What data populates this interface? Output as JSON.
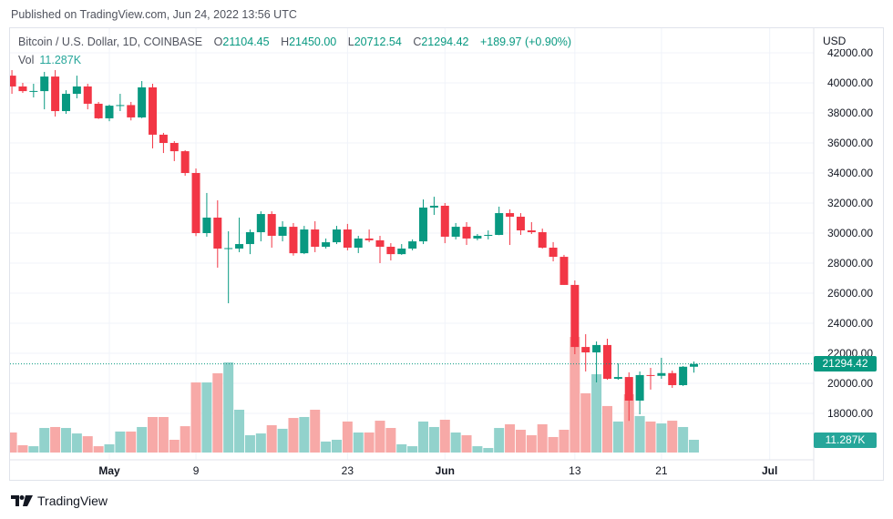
{
  "published": "Published on TradingView.com, Jun 24, 2022 13:56 UTC",
  "legend": {
    "symbol": "Bitcoin / U.S. Dollar, 1D, COINBASE",
    "open_label": "O",
    "open": "21104.45",
    "high_label": "H",
    "high": "21450.00",
    "low_label": "L",
    "low": "20712.54",
    "close_label": "C",
    "close": "21294.42",
    "change": "+189.97 (+0.90%)",
    "vol_label": "Vol",
    "vol": "11.287K"
  },
  "currency": "USD",
  "price_badge": "21294.42",
  "vol_badge": "11.287K",
  "footer_brand": "TradingView",
  "colors": {
    "up": "#089981",
    "down": "#f23645",
    "vol_up": "#92d2cc",
    "vol_down": "#f7a9a7",
    "grid": "#f0f3fa"
  },
  "chart_data": {
    "type": "candlestick",
    "title": "Bitcoin / U.S. Dollar, 1D, COINBASE",
    "ylabel": "USD",
    "ylim": [
      16600,
      42300
    ],
    "grid": true,
    "y_ticks": [
      "42000.00",
      "40000.00",
      "38000.00",
      "36000.00",
      "34000.00",
      "32000.00",
      "30000.00",
      "28000.00",
      "26000.00",
      "24000.00",
      "22000.00",
      "20000.00",
      "18000.00"
    ],
    "x_ticks": [
      {
        "label": "May",
        "date": "2022-05-01",
        "bold": true
      },
      {
        "label": "9",
        "date": "2022-05-09",
        "bold": false
      },
      {
        "label": "23",
        "date": "2022-05-23",
        "bold": false
      },
      {
        "label": "Jun",
        "date": "2022-06-01",
        "bold": true
      },
      {
        "label": "13",
        "date": "2022-06-13",
        "bold": false
      },
      {
        "label": "21",
        "date": "2022-06-21",
        "bold": false
      },
      {
        "label": "Jul",
        "date": "2022-07-01",
        "bold": true
      }
    ],
    "last_price": 21294.42,
    "columns": [
      "date",
      "open",
      "high",
      "low",
      "close",
      "volume_K"
    ],
    "candles": [
      [
        "2022-04-22",
        40480,
        40850,
        39270,
        39760,
        16.6
      ],
      [
        "2022-04-23",
        39760,
        40000,
        39330,
        39450,
        7.3
      ],
      [
        "2022-04-24",
        39450,
        39940,
        39030,
        39460,
        6.6
      ],
      [
        "2022-04-25",
        39450,
        40730,
        38240,
        40420,
        19.9
      ],
      [
        "2022-04-26",
        40420,
        40850,
        37760,
        38120,
        20.6
      ],
      [
        "2022-04-27",
        38120,
        39510,
        37940,
        39270,
        19.9
      ],
      [
        "2022-04-28",
        39270,
        40480,
        38970,
        39760,
        15.9
      ],
      [
        "2022-04-29",
        39760,
        39940,
        38240,
        38610,
        13.9
      ],
      [
        "2022-04-30",
        38610,
        38730,
        37600,
        37640,
        6.6
      ],
      [
        "2022-05-01",
        37640,
        38550,
        37450,
        38480,
        8.0
      ],
      [
        "2022-05-02",
        38480,
        39270,
        38120,
        38520,
        17.3
      ],
      [
        "2022-05-03",
        38520,
        38730,
        37500,
        37700,
        17.3
      ],
      [
        "2022-05-04",
        37700,
        40120,
        37650,
        39700,
        20.6
      ],
      [
        "2022-05-05",
        39700,
        39940,
        35640,
        36550,
        27.9
      ],
      [
        "2022-05-06",
        36550,
        36670,
        35330,
        36000,
        27.9
      ],
      [
        "2022-05-07",
        36000,
        36120,
        34790,
        35450,
        11.3
      ],
      [
        "2022-05-08",
        35450,
        35520,
        33820,
        34000,
        21.2
      ],
      [
        "2022-05-09",
        34000,
        34300,
        29800,
        30000,
        53.1
      ],
      [
        "2022-05-10",
        30000,
        32670,
        29760,
        31030,
        53.1
      ],
      [
        "2022-05-11",
        31030,
        32180,
        27700,
        28970,
        59.8
      ],
      [
        "2022-05-12",
        28970,
        30120,
        25330,
        29000,
        67.7
      ],
      [
        "2022-05-13",
        28970,
        31030,
        28730,
        29270,
        33.2
      ],
      [
        "2022-05-14",
        29270,
        30240,
        28600,
        30060,
        14.6
      ],
      [
        "2022-05-15",
        30060,
        31450,
        29450,
        31270,
        15.9
      ],
      [
        "2022-05-16",
        31270,
        31450,
        29030,
        29820,
        21.9
      ],
      [
        "2022-05-17",
        29820,
        30790,
        29450,
        30420,
        19.3
      ],
      [
        "2022-05-18",
        30420,
        30670,
        28500,
        28660,
        27.2
      ],
      [
        "2022-05-19",
        28660,
        30480,
        28600,
        30240,
        27.9
      ],
      [
        "2022-05-20",
        30240,
        30790,
        28730,
        29090,
        33.2
      ],
      [
        "2022-05-21",
        29090,
        29640,
        28970,
        29390,
        10.0
      ],
      [
        "2022-05-22",
        29390,
        30480,
        29270,
        30240,
        11.3
      ],
      [
        "2022-05-23",
        30240,
        30610,
        28850,
        29030,
        24.6
      ],
      [
        "2022-05-24",
        29030,
        29820,
        28670,
        29640,
        16.6
      ],
      [
        "2022-05-25",
        29640,
        30240,
        29400,
        29520,
        16.6
      ],
      [
        "2022-05-26",
        29520,
        29820,
        28000,
        29090,
        25.2
      ],
      [
        "2022-05-27",
        29090,
        29330,
        28180,
        28600,
        19.9
      ],
      [
        "2022-05-28",
        28600,
        29270,
        28550,
        28970,
        8.0
      ],
      [
        "2022-05-29",
        28970,
        29580,
        28850,
        29450,
        6.6
      ],
      [
        "2022-05-30",
        29450,
        32240,
        29270,
        31700,
        24.6
      ],
      [
        "2022-05-31",
        31700,
        32420,
        31210,
        31820,
        20.6
      ],
      [
        "2022-06-01",
        31820,
        32000,
        29330,
        29760,
        25.9
      ],
      [
        "2022-06-02",
        29760,
        30670,
        29580,
        30420,
        16.6
      ],
      [
        "2022-06-03",
        30420,
        30730,
        29210,
        29640,
        14.6
      ],
      [
        "2022-06-04",
        29640,
        29940,
        29520,
        29820,
        6.6
      ],
      [
        "2022-06-05",
        29820,
        30180,
        29580,
        29880,
        5.3
      ],
      [
        "2022-06-06",
        29880,
        31760,
        29860,
        31330,
        19.9
      ],
      [
        "2022-06-07",
        31330,
        31580,
        29210,
        31090,
        22.6
      ],
      [
        "2022-06-08",
        31090,
        31330,
        29880,
        30180,
        18.6
      ],
      [
        "2022-06-09",
        30180,
        30730,
        29940,
        30060,
        14.6
      ],
      [
        "2022-06-10",
        30060,
        30300,
        28970,
        29030,
        22.6
      ],
      [
        "2022-06-11",
        29030,
        29400,
        28120,
        28420,
        13.3
      ],
      [
        "2022-06-12",
        28420,
        28550,
        26550,
        26550,
        18.6
      ],
      [
        "2022-06-13",
        26550,
        26850,
        21940,
        22420,
        86.3
      ],
      [
        "2022-06-14",
        22420,
        23270,
        20790,
        22060,
        45.2
      ],
      [
        "2022-06-15",
        22060,
        22790,
        20060,
        22550,
        59.1
      ],
      [
        "2022-06-16",
        22550,
        22970,
        20240,
        20300,
        35.9
      ],
      [
        "2022-06-17",
        20300,
        21330,
        20240,
        20420,
        24.6
      ],
      [
        "2022-06-18",
        20420,
        20730,
        17500,
        18850,
        44.5
      ],
      [
        "2022-06-19",
        18850,
        20790,
        17940,
        20550,
        28.6
      ],
      [
        "2022-06-20",
        20550,
        21030,
        19580,
        20500,
        24.6
      ],
      [
        "2022-06-21",
        20500,
        21700,
        20300,
        20680,
        23.2
      ],
      [
        "2022-06-22",
        20680,
        20850,
        19700,
        19880,
        25.2
      ],
      [
        "2022-06-23",
        19880,
        21150,
        19820,
        21104.45,
        20.6
      ],
      [
        "2022-06-24",
        21104.45,
        21450.0,
        20712.54,
        21294.42,
        11.287
      ]
    ]
  }
}
